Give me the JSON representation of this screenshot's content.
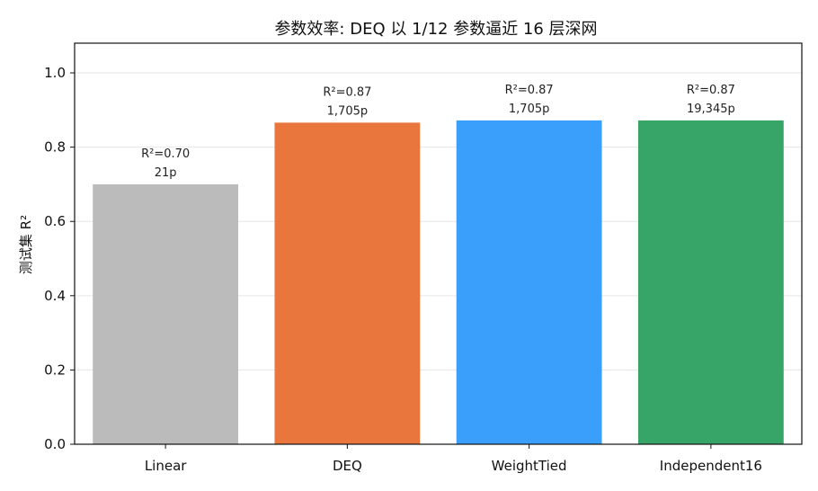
{
  "chart_data": {
    "type": "bar",
    "title": "参数效率: DEQ 以 1/12 参数逼近 16 层深网",
    "xlabel": "",
    "ylabel": "测试集 R²",
    "ylim": [
      0,
      1.08
    ],
    "yticks": [
      0.0,
      0.2,
      0.4,
      0.6,
      0.8,
      1.0
    ],
    "ytick_labels": [
      "0.0",
      "0.2",
      "0.4",
      "0.6",
      "0.8",
      "1.0"
    ],
    "grid": true,
    "categories": [
      "Linear",
      "DEQ",
      "WeightTied",
      "Independent16"
    ],
    "values": [
      0.7,
      0.866,
      0.872,
      0.872
    ],
    "colors": [
      "#bbbbbb",
      "#e9773d",
      "#3a9ffb",
      "#37a468"
    ],
    "annotations": [
      {
        "r2": "R²=0.70",
        "params": "21p"
      },
      {
        "r2": "R²=0.87",
        "params": "1,705p"
      },
      {
        "r2": "R²=0.87",
        "params": "1,705p"
      },
      {
        "r2": "R²=0.87",
        "params": "19,345p"
      }
    ]
  }
}
